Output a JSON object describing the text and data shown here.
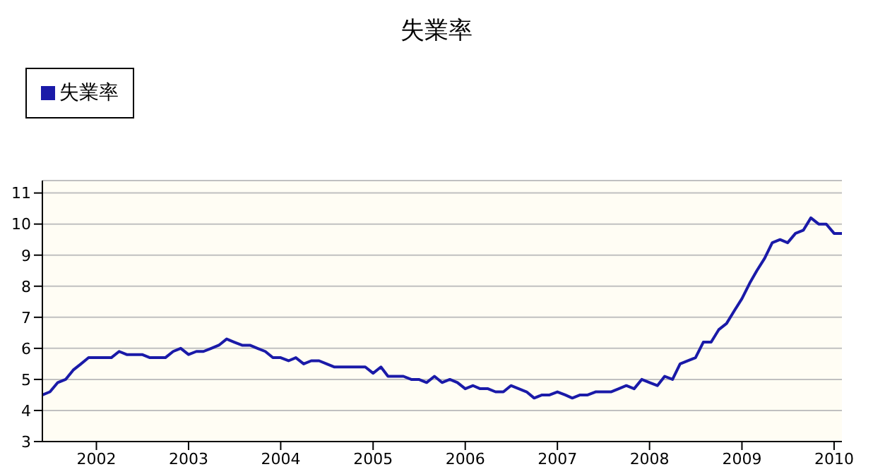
{
  "chart_data": {
    "type": "line",
    "title": "失業率",
    "legend": "top left",
    "grid": "y",
    "marker": "none",
    "line_style": "solid",
    "x": [
      "2001-06",
      "2001-07",
      "2001-08",
      "2001-09",
      "2001-10",
      "2001-11",
      "2001-12",
      "2002-01",
      "2002-02",
      "2002-03",
      "2002-04",
      "2002-05",
      "2002-06",
      "2002-07",
      "2002-08",
      "2002-09",
      "2002-10",
      "2002-11",
      "2002-12",
      "2003-01",
      "2003-02",
      "2003-03",
      "2003-04",
      "2003-05",
      "2003-06",
      "2003-07",
      "2003-08",
      "2003-09",
      "2003-10",
      "2003-11",
      "2003-12",
      "2004-01",
      "2004-02",
      "2004-03",
      "2004-04",
      "2004-05",
      "2004-06",
      "2004-07",
      "2004-08",
      "2004-09",
      "2004-10",
      "2004-11",
      "2004-12",
      "2005-01",
      "2005-02",
      "2005-03",
      "2005-04",
      "2005-05",
      "2005-06",
      "2005-07",
      "2005-08",
      "2005-09",
      "2005-10",
      "2005-11",
      "2005-12",
      "2006-01",
      "2006-02",
      "2006-03",
      "2006-04",
      "2006-05",
      "2006-06",
      "2006-07",
      "2006-08",
      "2006-09",
      "2006-10",
      "2006-11",
      "2006-12",
      "2007-01",
      "2007-02",
      "2007-03",
      "2007-04",
      "2007-05",
      "2007-06",
      "2007-07",
      "2007-08",
      "2007-09",
      "2007-10",
      "2007-11",
      "2007-12",
      "2008-01",
      "2008-02",
      "2008-03",
      "2008-04",
      "2008-05",
      "2008-06",
      "2008-07",
      "2008-08",
      "2008-09",
      "2008-10",
      "2008-11",
      "2008-12",
      "2009-01",
      "2009-02",
      "2009-03",
      "2009-04",
      "2009-05",
      "2009-06",
      "2009-07",
      "2009-08",
      "2009-09",
      "2009-10",
      "2009-11",
      "2009-12",
      "2010-01",
      "2010-02"
    ],
    "series": [
      {
        "name": "失業率",
        "color": "#1a1aa8",
        "values": [
          4.5,
          4.6,
          4.9,
          5.0,
          5.3,
          5.5,
          5.7,
          5.7,
          5.7,
          5.7,
          5.9,
          5.8,
          5.8,
          5.8,
          5.7,
          5.7,
          5.7,
          5.9,
          6.0,
          5.8,
          5.9,
          5.9,
          6.0,
          6.1,
          6.3,
          6.2,
          6.1,
          6.1,
          6.0,
          5.9,
          5.7,
          5.7,
          5.6,
          5.7,
          5.5,
          5.6,
          5.6,
          5.5,
          5.4,
          5.4,
          5.4,
          5.4,
          5.4,
          5.2,
          5.4,
          5.1,
          5.1,
          5.1,
          5.0,
          5.0,
          4.9,
          5.1,
          4.9,
          5.0,
          4.9,
          4.7,
          4.8,
          4.7,
          4.7,
          4.6,
          4.6,
          4.8,
          4.7,
          4.6,
          4.4,
          4.5,
          4.5,
          4.6,
          4.5,
          4.4,
          4.5,
          4.5,
          4.6,
          4.6,
          4.6,
          4.7,
          4.8,
          4.7,
          5.0,
          4.9,
          4.8,
          5.1,
          5.0,
          5.5,
          5.6,
          5.7,
          6.2,
          6.2,
          6.6,
          6.8,
          7.2,
          7.6,
          8.1,
          8.5,
          8.9,
          9.4,
          9.5,
          9.4,
          9.7,
          9.8,
          10.2,
          10.0,
          10.0,
          9.7,
          9.7
        ]
      }
    ],
    "xlim": [
      "2001-06",
      "2010-02"
    ],
    "xticks": [
      "2002",
      "2003",
      "2004",
      "2005",
      "2006",
      "2007",
      "2008",
      "2009",
      "2010"
    ],
    "ylim": [
      3,
      11.4
    ],
    "yticks": [
      3,
      4,
      5,
      6,
      7,
      8,
      9,
      10,
      11
    ]
  }
}
